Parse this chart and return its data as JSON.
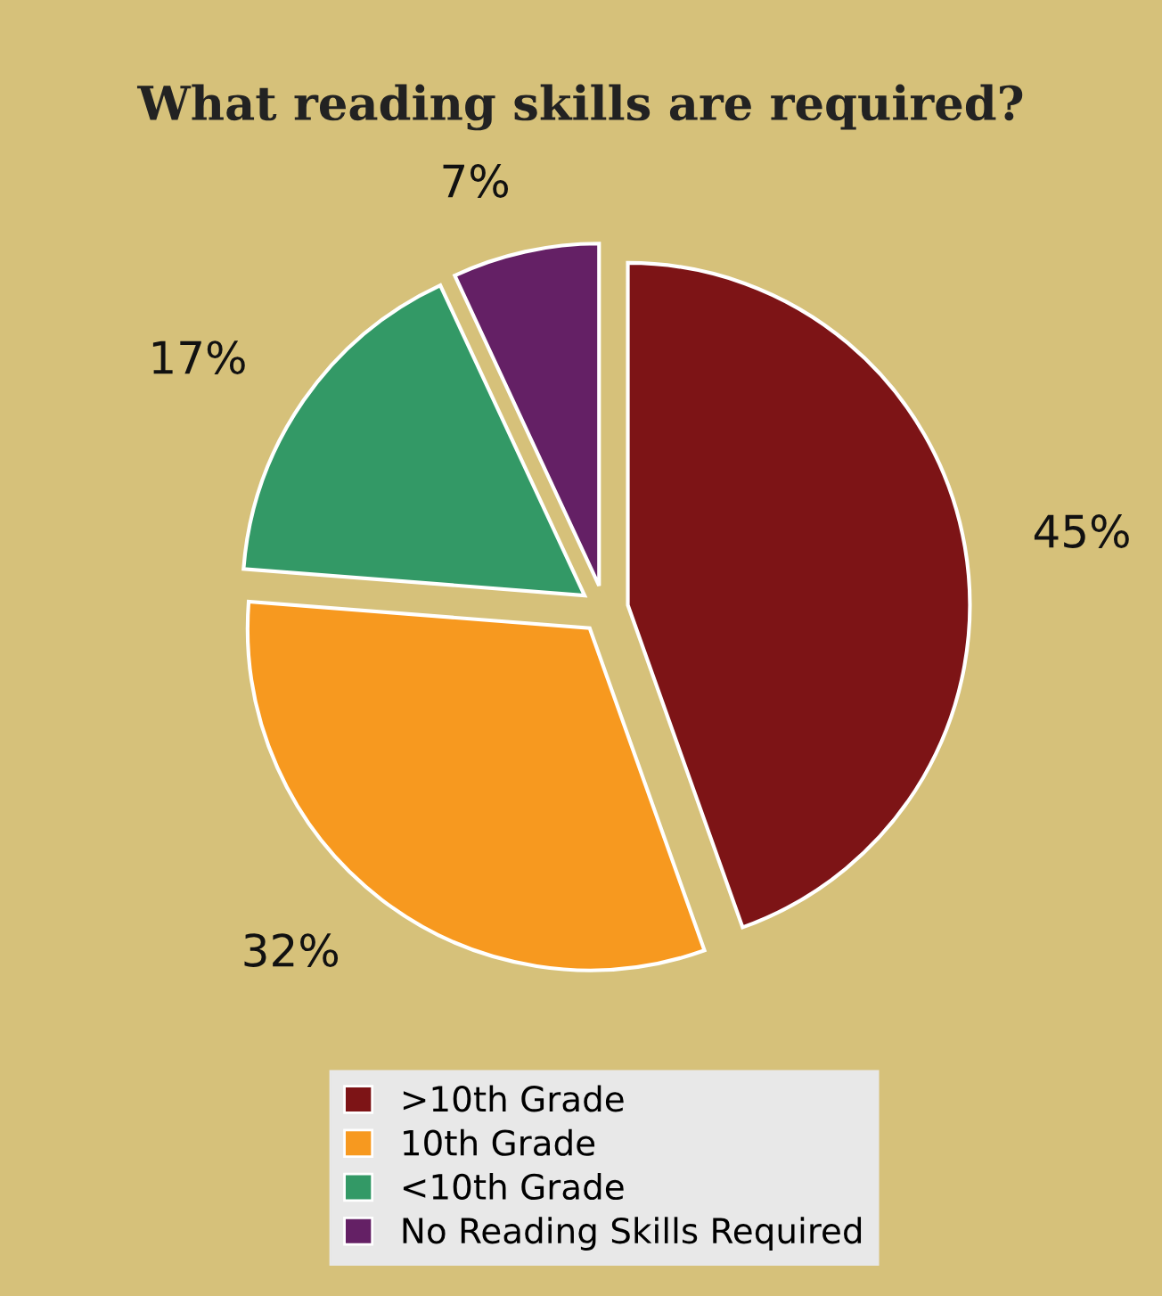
{
  "chart_data": {
    "type": "pie",
    "title": "What reading skills are required?",
    "categories": [
      ">10th Grade",
      "10th Grade",
      "<10th Grade",
      "No Reading Skills Required"
    ],
    "values": [
      45,
      32,
      17,
      7
    ],
    "colors": [
      "#7d1416",
      "#f7991f",
      "#339966",
      "#642065"
    ],
    "value_labels": [
      "45%",
      "32%",
      "17%",
      "7%"
    ],
    "legend": "bottom"
  }
}
